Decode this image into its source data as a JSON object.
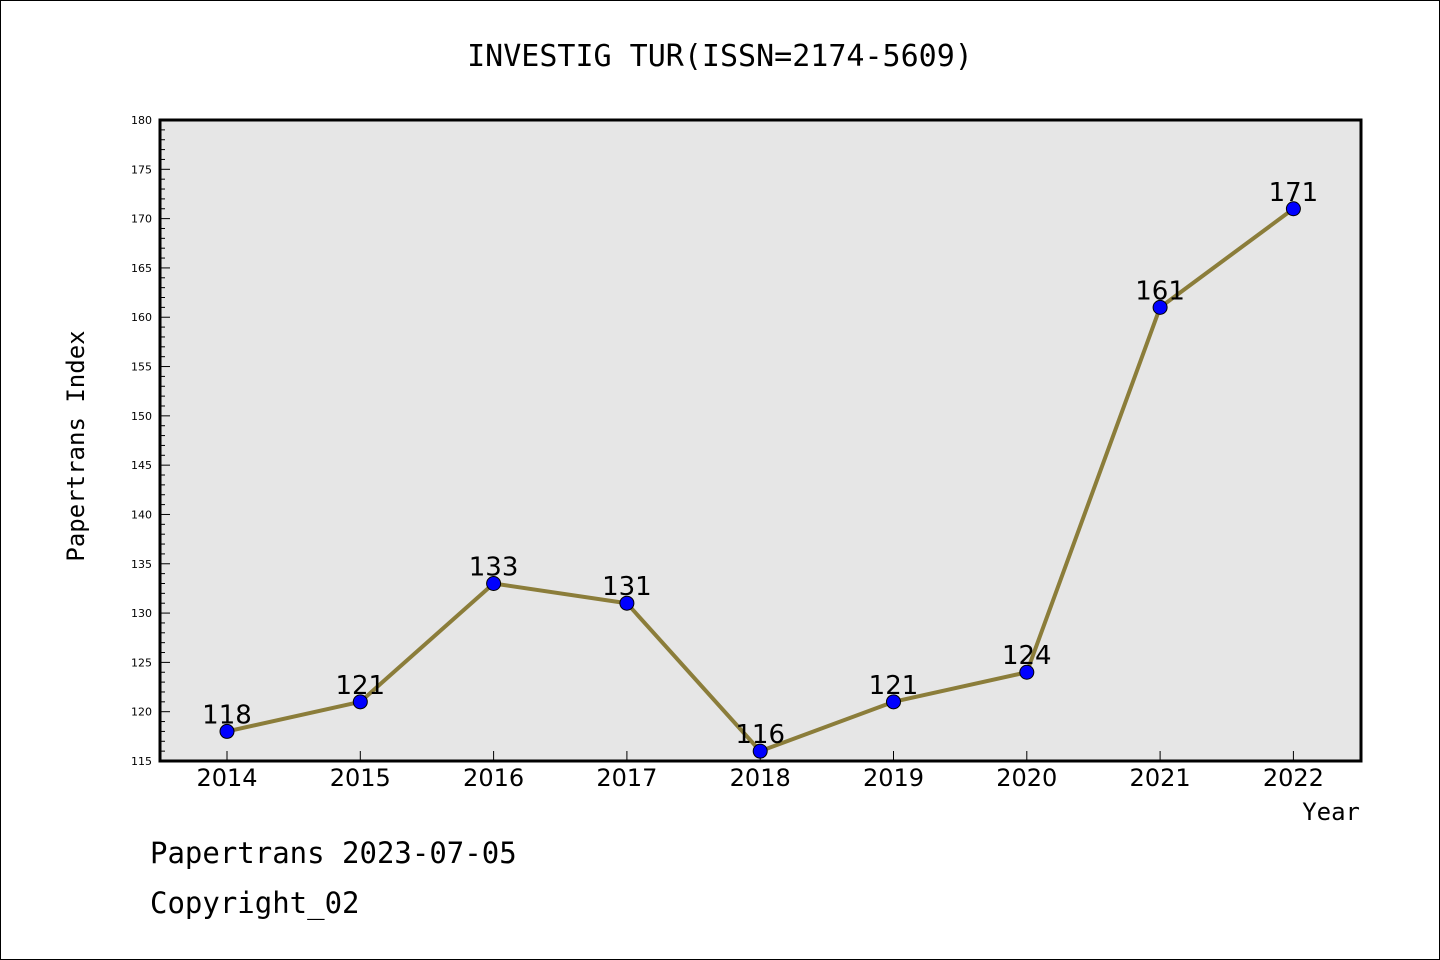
{
  "chart_data": {
    "type": "line",
    "title": "INVESTIG TUR(ISSN=2174-5609)",
    "xlabel": "Year",
    "ylabel": "Papertrans Index",
    "x": [
      "2014",
      "2015",
      "2016",
      "2017",
      "2018",
      "2019",
      "2020",
      "2021",
      "2022"
    ],
    "series": [
      {
        "values": [
          118,
          121,
          133,
          131,
          116,
          121,
          124,
          161,
          171
        ]
      }
    ],
    "ylim": [
      115,
      180
    ],
    "yticks": [
      "115",
      "120",
      "125",
      "130",
      "135",
      "140",
      "145",
      "150",
      "155",
      "160",
      "165",
      "170",
      "175",
      "180"
    ],
    "grid": false,
    "colors": {
      "line": "#8b7d3a",
      "marker": "#0000ff",
      "plot_bg": "#e6e6e6"
    }
  },
  "footer": {
    "date_line": "Papertrans 2023-07-05",
    "copyright": "Copyright_02"
  }
}
